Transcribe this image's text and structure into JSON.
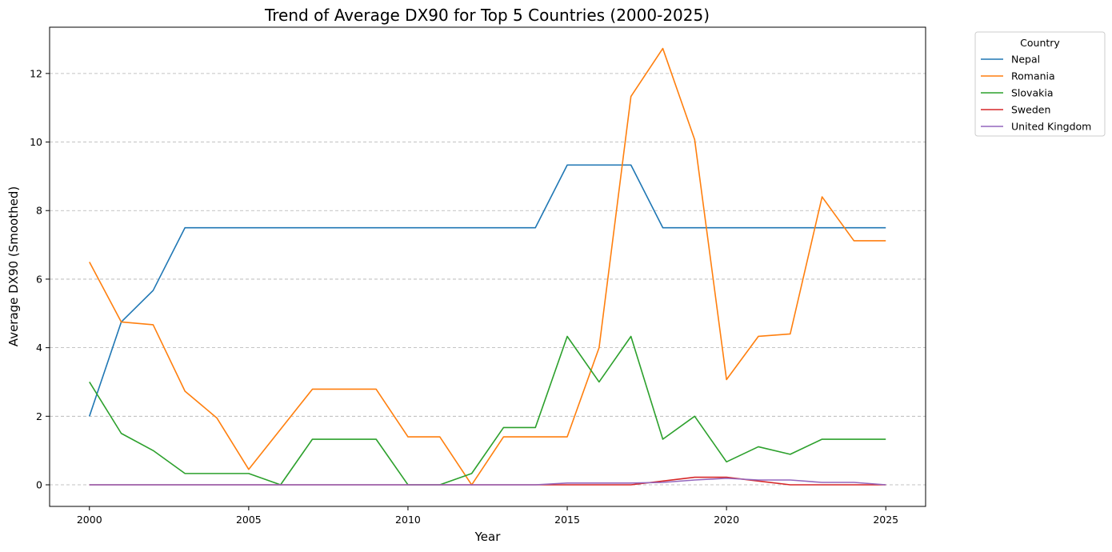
{
  "chart_data": {
    "type": "line",
    "title": "Trend of Average DX90 for Top 5 Countries (2000-2025)",
    "xlabel": "Year",
    "ylabel": "Average DX90 (Smoothed)",
    "xlim": [
      1998.75,
      2026.25
    ],
    "ylim": [
      -0.63,
      13.35
    ],
    "xticks": [
      2000,
      2005,
      2010,
      2015,
      2020,
      2025
    ],
    "yticks": [
      0,
      2,
      4,
      6,
      8,
      10,
      12
    ],
    "grid": "y-dashed",
    "legend_title": "Country",
    "legend_position": "outside-top-right",
    "x": [
      2000,
      2001,
      2002,
      2003,
      2004,
      2005,
      2006,
      2007,
      2008,
      2009,
      2010,
      2011,
      2012,
      2013,
      2014,
      2015,
      2016,
      2017,
      2018,
      2019,
      2020,
      2021,
      2022,
      2023,
      2024,
      2025
    ],
    "series": [
      {
        "name": "Nepal",
        "color": "#1f77b4",
        "values": [
          2.0,
          4.75,
          5.67,
          7.5,
          7.5,
          7.5,
          7.5,
          7.5,
          7.5,
          7.5,
          7.5,
          7.5,
          7.5,
          7.5,
          7.5,
          9.33,
          9.33,
          9.33,
          7.5,
          7.5,
          7.5,
          7.5,
          7.5,
          7.5,
          7.5,
          7.5
        ]
      },
      {
        "name": "Romania",
        "color": "#ff7f0e",
        "values": [
          6.5,
          4.75,
          4.67,
          2.73,
          1.95,
          0.45,
          1.62,
          2.79,
          2.79,
          2.79,
          1.4,
          1.4,
          0.0,
          1.4,
          1.4,
          1.4,
          4.0,
          11.33,
          12.73,
          10.07,
          3.07,
          4.33,
          4.4,
          8.4,
          7.12,
          7.12
        ]
      },
      {
        "name": "Slovakia",
        "color": "#2ca02c",
        "values": [
          3.0,
          1.5,
          1.0,
          0.33,
          0.33,
          0.33,
          0.0,
          1.33,
          1.33,
          1.33,
          0.0,
          0.0,
          0.33,
          1.67,
          1.67,
          4.33,
          3.0,
          4.33,
          1.33,
          2.0,
          0.67,
          1.11,
          0.89,
          1.33,
          1.33,
          1.33
        ]
      },
      {
        "name": "Sweden",
        "color": "#d62728",
        "values": [
          0,
          0,
          0,
          0,
          0,
          0,
          0,
          0,
          0,
          0,
          0,
          0,
          0,
          0,
          0,
          0,
          0,
          0,
          0.11,
          0.22,
          0.22,
          0.11,
          0,
          0,
          0,
          0
        ]
      },
      {
        "name": "United Kingdom",
        "color": "#9467bd",
        "values": [
          0,
          0,
          0,
          0,
          0,
          0,
          0,
          0,
          0,
          0,
          0,
          0,
          0,
          0,
          0,
          0.05,
          0.05,
          0.05,
          0.07,
          0.14,
          0.19,
          0.14,
          0.14,
          0.07,
          0.07,
          0
        ]
      }
    ]
  }
}
